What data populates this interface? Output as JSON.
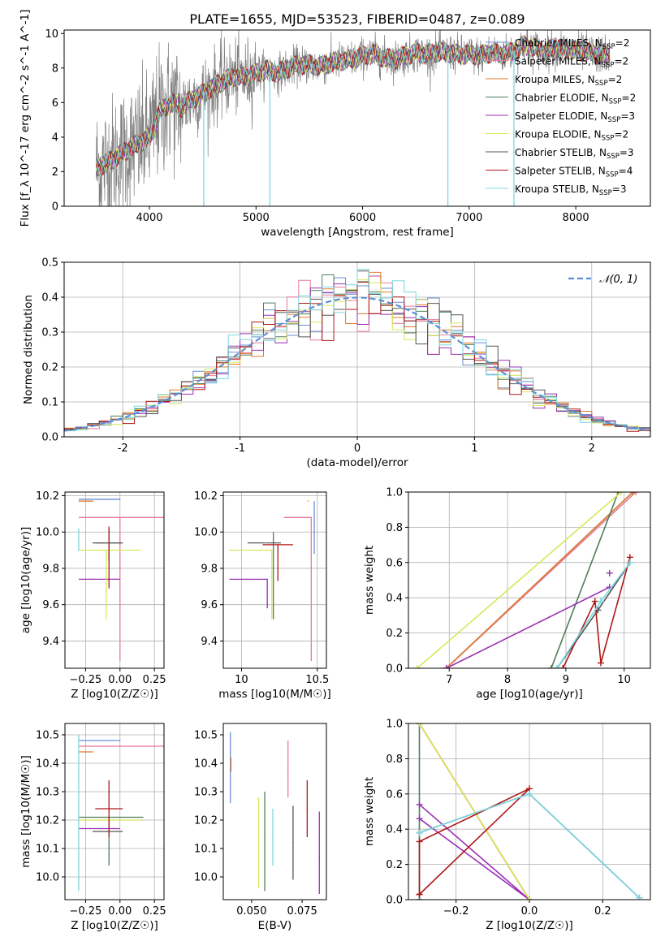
{
  "figure_title": "PLATE=1655, MJD=53523, FIBERID=0487, z=0.089",
  "series_styles": [
    {
      "name": "Chabrier MILES",
      "nssp": "2",
      "color": "#6b8ed6"
    },
    {
      "name": "Salpeter MILES",
      "nssp": "2",
      "color": "#e8799a"
    },
    {
      "name": "Kroupa MILES",
      "nssp": "2",
      "color": "#e07b2a"
    },
    {
      "name": "Chabrier ELODIE",
      "nssp": "2",
      "color": "#4f7e5a"
    },
    {
      "name": "Salpeter ELODIE",
      "nssp": "3",
      "color": "#9b30b4"
    },
    {
      "name": "Kroupa ELODIE",
      "nssp": "2",
      "color": "#d8e85a"
    },
    {
      "name": "Chabrier STELIB",
      "nssp": "3",
      "color": "#555555"
    },
    {
      "name": "Salpeter STELIB",
      "nssp": "4",
      "color": "#b01818"
    },
    {
      "name": "Kroupa STELIB",
      "nssp": "3",
      "color": "#7cd8e0"
    }
  ],
  "chart_data": [
    {
      "id": "spectrum",
      "type": "line",
      "title": "PLATE=1655, MJD=53523, FIBERID=0487, z=0.089",
      "xlabel": "wavelength [Angstrom, rest frame]",
      "ylabel": "Flux [f_λ 10^-17 erg cm^-2 s^-1 A^-1]",
      "xlim": [
        3200,
        8700
      ],
      "ylim": [
        0,
        10.2
      ],
      "xticks": [
        4000,
        5000,
        6000,
        7000,
        8000
      ],
      "yticks": [
        0,
        2,
        4,
        6,
        8,
        10
      ],
      "grid": false,
      "legend_position": "top-right",
      "data_color": "#808080",
      "model_envelope": [
        [
          3500,
          2.2
        ],
        [
          3600,
          2.5
        ],
        [
          3700,
          2.9
        ],
        [
          3800,
          3.3
        ],
        [
          3900,
          3.6
        ],
        [
          4000,
          4.0
        ],
        [
          4100,
          5.5
        ],
        [
          4200,
          6.0
        ],
        [
          4300,
          5.7
        ],
        [
          4400,
          6.2
        ],
        [
          4500,
          6.5
        ],
        [
          4600,
          6.9
        ],
        [
          4700,
          7.3
        ],
        [
          4800,
          7.5
        ],
        [
          4900,
          7.5
        ],
        [
          5000,
          7.7
        ],
        [
          5100,
          7.9
        ],
        [
          5200,
          7.7
        ],
        [
          5300,
          8.0
        ],
        [
          5400,
          8.2
        ],
        [
          5500,
          8.2
        ],
        [
          5600,
          8.1
        ],
        [
          5700,
          8.3
        ],
        [
          5800,
          8.4
        ],
        [
          5900,
          8.5
        ],
        [
          6000,
          8.7
        ],
        [
          6100,
          8.8
        ],
        [
          6200,
          8.6
        ],
        [
          6300,
          8.5
        ],
        [
          6400,
          8.7
        ],
        [
          6500,
          8.9
        ],
        [
          6600,
          8.8
        ],
        [
          6700,
          8.9
        ],
        [
          6800,
          8.9
        ],
        [
          6900,
          8.8
        ],
        [
          7000,
          8.8
        ],
        [
          7100,
          8.7
        ],
        [
          7200,
          8.9
        ],
        [
          7300,
          8.8
        ],
        [
          7400,
          8.9
        ],
        [
          7500,
          9.3
        ],
        [
          7600,
          9.2
        ],
        [
          7700,
          8.9
        ],
        [
          7800,
          9.2
        ],
        [
          7900,
          9.1
        ],
        [
          8000,
          9.0
        ],
        [
          8100,
          8.9
        ],
        [
          8200,
          8.8
        ],
        [
          8300,
          8.7
        ]
      ],
      "absorption_dips": [
        {
          "x": 4510,
          "y": 0
        },
        {
          "x": 5130,
          "y": 0
        },
        {
          "x": 6800,
          "y": 0
        },
        {
          "x": 7420,
          "y": 0
        }
      ]
    },
    {
      "id": "residuals",
      "type": "step",
      "xlabel": "(data-model)/error",
      "ylabel": "Normed distribution",
      "xlim": [
        -2.5,
        2.5
      ],
      "ylim": [
        0,
        0.5
      ],
      "xticks": [
        -2,
        -1,
        0,
        1,
        2
      ],
      "yticks": [
        0.0,
        0.1,
        0.2,
        0.3,
        0.4,
        0.5
      ],
      "grid": true,
      "legend": [
        {
          "label": "𝒩(0, 1)",
          "style": "dashed",
          "color": "#5b8fd4"
        }
      ],
      "legend_position": "top-right",
      "bin_width": 0.1,
      "reference_gaussian": {
        "mean": 0,
        "sigma": 1
      }
    },
    {
      "id": "age_vs_Z",
      "type": "errorbar",
      "xlabel": "Z [log10(Z/Z☉)]",
      "ylabel": "age [log10(age/yr)]",
      "xlim": [
        -0.4,
        0.32
      ],
      "ylim": [
        9.25,
        10.22
      ],
      "xticks": [
        -0.25,
        0.0,
        0.25
      ],
      "xticklabels": [
        "−0.25",
        "0.00",
        "0.25"
      ],
      "yticks": [
        9.4,
        9.6,
        9.8,
        10.0,
        10.2
      ],
      "grid": true,
      "points": [
        {
          "x": 0.0,
          "xerr": [
            0.3,
            0.0
          ],
          "y": 10.18,
          "yerr": [
            0.0,
            0.0
          ],
          "color": "#6b8ed6"
        },
        {
          "x": 0.0,
          "xerr": [
            0.3,
            0.4
          ],
          "y": 10.08,
          "yerr": [
            0.79,
            0.0
          ],
          "color": "#e8799a"
        },
        {
          "x": -0.2,
          "xerr": [
            0.1,
            0.0
          ],
          "y": 10.17,
          "yerr": [
            0.0,
            0.0
          ],
          "color": "#e07b2a"
        },
        {
          "x": -0.08,
          "xerr": [
            0.1,
            0.1
          ],
          "y": 9.94,
          "yerr": [
            0.1,
            0.08
          ],
          "color": "#4f7e5a"
        },
        {
          "x": -0.2,
          "xerr": [
            0.1,
            0.2
          ],
          "y": 9.74,
          "yerr": [
            0.0,
            0.0
          ],
          "color": "#9b30b4"
        },
        {
          "x": -0.1,
          "xerr": [
            0.2,
            0.25
          ],
          "y": 9.9,
          "yerr": [
            0.38,
            0.0
          ],
          "color": "#d8e85a"
        },
        {
          "x": -0.08,
          "xerr": [
            0.12,
            0.1
          ],
          "y": 9.94,
          "yerr": [
            0.0,
            0.0
          ],
          "color": "#555555"
        },
        {
          "x": -0.08,
          "xerr": [
            0.0,
            0.0
          ],
          "y": 9.85,
          "yerr": [
            0.16,
            0.18
          ],
          "color": "#b01818"
        },
        {
          "x": -0.3,
          "xerr": [
            0.0,
            0.0
          ],
          "y": 9.9,
          "yerr": [
            0.0,
            0.12
          ],
          "color": "#7cd8e0"
        }
      ]
    },
    {
      "id": "age_vs_mass",
      "type": "errorbar",
      "xlabel": "mass [log10(M/M☉)]",
      "ylabel": "",
      "xlim": [
        9.88,
        10.56
      ],
      "ylim": [
        9.25,
        10.22
      ],
      "xticks": [
        10.0,
        10.5
      ],
      "yticks": [
        9.4,
        9.6,
        9.8,
        10.0,
        10.2
      ],
      "grid": true,
      "points": [
        {
          "x": 10.48,
          "xerr": [
            0.0,
            0.0
          ],
          "y": 10.05,
          "yerr": [
            0.17,
            0.12
          ],
          "color": "#6b8ed6"
        },
        {
          "x": 10.46,
          "xerr": [
            0.18,
            0.0
          ],
          "y": 10.08,
          "yerr": [
            0.79,
            0.0
          ],
          "color": "#e8799a"
        },
        {
          "x": 10.44,
          "xerr": [
            0.0,
            0.0
          ],
          "y": 10.17,
          "yerr": [
            0.0,
            0.0
          ],
          "color": "#e07b2a"
        },
        {
          "x": 10.21,
          "xerr": [
            0.0,
            0.0
          ],
          "y": 9.8,
          "yerr": [
            0.28,
            0.2
          ],
          "color": "#4f7e5a"
        },
        {
          "x": 10.17,
          "xerr": [
            0.25,
            0.0
          ],
          "y": 9.74,
          "yerr": [
            0.16,
            0.0
          ],
          "color": "#9b30b4"
        },
        {
          "x": 10.2,
          "xerr": [
            0.28,
            0.0
          ],
          "y": 9.9,
          "yerr": [
            0.38,
            0.0
          ],
          "color": "#d8e85a"
        },
        {
          "x": 10.16,
          "xerr": [
            0.12,
            0.1
          ],
          "y": 9.94,
          "yerr": [
            0.0,
            0.0
          ],
          "color": "#555555"
        },
        {
          "x": 10.24,
          "xerr": [
            0.1,
            0.1
          ],
          "y": 9.93,
          "yerr": [
            0.2,
            0.0
          ],
          "color": "#b01818"
        },
        {
          "x": 10.16,
          "xerr": [
            0.0,
            0.0
          ],
          "y": 9.94,
          "yerr": [
            0.0,
            0.0
          ],
          "color": "#7cd8e0"
        }
      ]
    },
    {
      "id": "weight_vs_age",
      "type": "line",
      "xlabel": "age [log10(age/yr)]",
      "ylabel": "mass weight",
      "xlim": [
        6.3,
        10.45
      ],
      "ylim": [
        0.0,
        1.0
      ],
      "xticks": [
        7,
        8,
        9,
        10
      ],
      "yticks": [
        0.0,
        0.2,
        0.4,
        0.6,
        0.8,
        1.0
      ],
      "grid": true,
      "series": [
        {
          "color": "#6b8ed6",
          "x": [
            6.95,
            10.15
          ],
          "y": [
            0.0,
            1.0
          ]
        },
        {
          "color": "#e8799a",
          "x": [
            6.95,
            10.2
          ],
          "y": [
            0.0,
            1.0
          ]
        },
        {
          "color": "#e07b2a",
          "x": [
            6.95,
            10.15
          ],
          "y": [
            0.0,
            1.0
          ]
        },
        {
          "color": "#4f7e5a",
          "x": [
            8.75,
            9.9
          ],
          "y": [
            0.0,
            1.0
          ]
        },
        {
          "color": "#9b30b4",
          "x": [
            6.95,
            9.75
          ],
          "y": [
            0.0,
            0.46
          ],
          "markers": [
            [
              9.75,
              0.54
            ]
          ]
        },
        {
          "color": "#d8e85a",
          "x": [
            6.45,
            9.95
          ],
          "y": [
            0.0,
            1.0
          ]
        },
        {
          "color": "#555555",
          "x": [
            8.85,
            9.55,
            10.1
          ],
          "y": [
            0.0,
            0.33,
            0.6
          ]
        },
        {
          "color": "#b01818",
          "x": [
            8.95,
            9.5,
            9.6,
            10.1
          ],
          "y": [
            0.0,
            0.38,
            0.03,
            0.63
          ]
        },
        {
          "color": "#7cd8e0",
          "x": [
            8.85,
            9.6,
            10.1
          ],
          "y": [
            0.0,
            0.38,
            0.6
          ]
        }
      ]
    },
    {
      "id": "mass_vs_Z",
      "type": "errorbar",
      "xlabel": "Z [log10(Z/Z☉)]",
      "ylabel": "mass [log10(M/M☉)]",
      "xlim": [
        -0.4,
        0.32
      ],
      "ylim": [
        9.92,
        10.54
      ],
      "xticks": [
        -0.25,
        0.0,
        0.25
      ],
      "xticklabels": [
        "−0.25",
        "0.00",
        "0.25"
      ],
      "yticks": [
        10.0,
        10.1,
        10.2,
        10.3,
        10.4,
        10.5
      ],
      "grid": true,
      "points": [
        {
          "x": 0.0,
          "xerr": [
            0.3,
            0.0
          ],
          "y": 10.48,
          "yerr": [
            0.0,
            0.0
          ],
          "color": "#6b8ed6"
        },
        {
          "x": 0.0,
          "xerr": [
            0.3,
            0.4
          ],
          "y": 10.46,
          "yerr": [
            0.0,
            0.0
          ],
          "color": "#e8799a"
        },
        {
          "x": -0.2,
          "xerr": [
            0.1,
            0.0
          ],
          "y": 10.44,
          "yerr": [
            0.0,
            0.0
          ],
          "color": "#e07b2a"
        },
        {
          "x": -0.08,
          "xerr": [
            0.22,
            0.25
          ],
          "y": 10.21,
          "yerr": [
            0.17,
            0.0
          ],
          "color": "#4f7e5a"
        },
        {
          "x": -0.15,
          "xerr": [
            0.15,
            0.15
          ],
          "y": 10.17,
          "yerr": [
            0.0,
            0.0
          ],
          "color": "#9b30b4"
        },
        {
          "x": -0.1,
          "xerr": [
            0.2,
            0.25
          ],
          "y": 10.2,
          "yerr": [
            0.0,
            0.0
          ],
          "color": "#d8e85a"
        },
        {
          "x": -0.08,
          "xerr": [
            0.12,
            0.1
          ],
          "y": 10.16,
          "yerr": [
            0.0,
            0.0
          ],
          "color": "#555555"
        },
        {
          "x": -0.08,
          "xerr": [
            0.1,
            0.1
          ],
          "y": 10.24,
          "yerr": [
            0.1,
            0.1
          ],
          "color": "#b01818"
        },
        {
          "x": -0.3,
          "xerr": [
            0.0,
            0.0
          ],
          "y": 10.3,
          "yerr": [
            0.35,
            0.2
          ],
          "color": "#7cd8e0"
        }
      ]
    },
    {
      "id": "mass_vs_ebv",
      "type": "errorbar",
      "xlabel": "E(B-V)",
      "ylabel": "",
      "xlim": [
        0.036,
        0.087
      ],
      "ylim": [
        9.92,
        10.54
      ],
      "xticks": [
        0.05,
        0.075
      ],
      "xticklabels": [
        "0.050",
        "0.075"
      ],
      "yticks": [
        10.0,
        10.1,
        10.2,
        10.3,
        10.4,
        10.5
      ],
      "grid": false,
      "points": [
        {
          "x": 0.0395,
          "y": 10.38,
          "yerr": [
            0.12,
            0.13
          ],
          "color": "#6b8ed6"
        },
        {
          "x": 0.068,
          "y": 10.38,
          "yerr": [
            0.1,
            0.1
          ],
          "color": "#e8799a"
        },
        {
          "x": 0.0398,
          "y": 10.4,
          "yerr": [
            0.03,
            0.02
          ],
          "color": "#e07b2a"
        },
        {
          "x": 0.0565,
          "y": 10.14,
          "yerr": [
            0.19,
            0.16
          ],
          "color": "#4f7e5a"
        },
        {
          "x": 0.0835,
          "y": 10.07,
          "yerr": [
            0.13,
            0.16
          ],
          "color": "#9b30b4"
        },
        {
          "x": 0.0535,
          "y": 10.12,
          "yerr": [
            0.16,
            0.16
          ],
          "color": "#d8e85a"
        },
        {
          "x": 0.0705,
          "y": 10.12,
          "yerr": [
            0.13,
            0.13
          ],
          "color": "#555555"
        },
        {
          "x": 0.0775,
          "y": 10.24,
          "yerr": [
            0.1,
            0.1
          ],
          "color": "#b01818"
        },
        {
          "x": 0.0605,
          "y": 10.14,
          "yerr": [
            0.1,
            0.1
          ],
          "color": "#7cd8e0"
        }
      ]
    },
    {
      "id": "weight_vs_Z",
      "type": "line",
      "xlabel": "Z [log10(Z/Z☉)]",
      "ylabel": "mass weight",
      "xlim": [
        -0.33,
        0.33
      ],
      "ylim": [
        0.0,
        1.0
      ],
      "xticks": [
        -0.2,
        0.0,
        0.2
      ],
      "xticklabels": [
        "−0.2",
        "0.0",
        "0.2"
      ],
      "yticks": [
        0.0,
        0.2,
        0.4,
        0.6,
        0.8,
        1.0
      ],
      "grid": true,
      "series": [
        {
          "color": "#6b8ed6",
          "x": [
            -0.3,
            0.0
          ],
          "y": [
            1.0,
            0.0
          ]
        },
        {
          "color": "#e8799a",
          "x": [
            -0.3,
            0.0
          ],
          "y": [
            1.0,
            0.0
          ]
        },
        {
          "color": "#e07b2a",
          "x": [
            -0.3,
            0.0
          ],
          "y": [
            1.0,
            0.0
          ]
        },
        {
          "color": "#4f7e5a",
          "x": [
            -0.3,
            -0.3
          ],
          "y": [
            1.0,
            0.0
          ]
        },
        {
          "color": "#9b30b4",
          "x": [
            -0.3,
            0.0,
            -0.3
          ],
          "y": [
            0.54,
            0.0,
            0.46
          ]
        },
        {
          "color": "#d8e85a",
          "x": [
            -0.3,
            0.0
          ],
          "y": [
            1.0,
            0.0
          ]
        },
        {
          "color": "#555555",
          "x": [
            -0.3,
            0.0,
            0.3
          ],
          "y": [
            0.38,
            0.6,
            0.01
          ]
        },
        {
          "color": "#b01818",
          "x": [
            -0.3,
            0.0,
            -0.3,
            -0.3
          ],
          "y": [
            0.03,
            0.63,
            0.33,
            0.03
          ]
        },
        {
          "color": "#7cd8e0",
          "x": [
            -0.3,
            0.0,
            0.3
          ],
          "y": [
            0.38,
            0.6,
            0.01
          ]
        }
      ]
    }
  ]
}
